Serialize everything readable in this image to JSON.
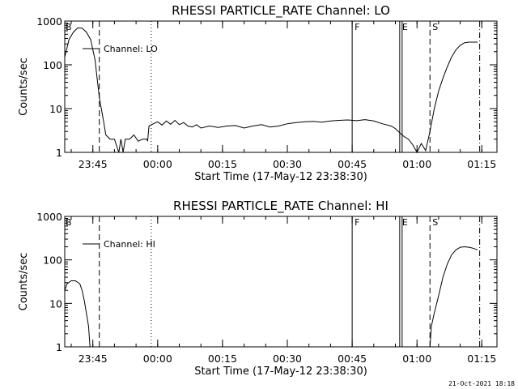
{
  "timestamp": "21-Oct-2021 18:18",
  "chart_data": [
    {
      "type": "line",
      "title": "RHESSI PARTICLE_RATE Channel: LO",
      "xlabel": "Start Time (17-May-12 23:38:30)",
      "ylabel": "Counts/sec",
      "yscale": "log",
      "ylim": [
        1,
        1000
      ],
      "xlim": [
        "23:38:30",
        "01:18:30"
      ],
      "x_ticks": [
        "23:45",
        "00:00",
        "00:15",
        "00:30",
        "00:45",
        "01:00",
        "01:15"
      ],
      "y_ticks": [
        "1",
        "10",
        "100",
        "1000"
      ],
      "legend": "top-left",
      "series": [
        {
          "name": "Channel: LO",
          "points": [
            [
              "23:38:30",
              150
            ],
            [
              "23:39:30",
              380
            ],
            [
              "23:40:30",
              560
            ],
            [
              "23:41:30",
              700
            ],
            [
              "23:42:30",
              690
            ],
            [
              "23:43:30",
              560
            ],
            [
              "23:44:30",
              380
            ],
            [
              "23:45:30",
              130
            ],
            [
              "23:46:30",
              18
            ],
            [
              "23:47:30",
              5
            ],
            [
              "23:48:00",
              2.5
            ],
            [
              "23:49:00",
              2
            ],
            [
              "23:50:00",
              2
            ],
            [
              "23:51:00",
              1
            ],
            [
              "23:51:30",
              2
            ],
            [
              "23:52:00",
              1
            ],
            [
              "23:52:30",
              2
            ],
            [
              "23:53:30",
              2
            ],
            [
              "23:54:30",
              2.5
            ],
            [
              "23:55:30",
              1.8
            ],
            [
              "23:56:30",
              2
            ],
            [
              "23:57:30",
              2
            ],
            [
              "23:57:40",
              1.8
            ],
            [
              "23:58:00",
              4
            ],
            [
              "23:59:00",
              4.5
            ],
            [
              "00:00:00",
              5
            ],
            [
              "00:01:00",
              4.2
            ],
            [
              "00:02:00",
              5.2
            ],
            [
              "00:03:00",
              4.4
            ],
            [
              "00:04:00",
              5.4
            ],
            [
              "00:05:00",
              4.3
            ],
            [
              "00:06:00",
              4.8
            ],
            [
              "00:07:00",
              4
            ],
            [
              "00:08:00",
              3.8
            ],
            [
              "00:09:00",
              4.3
            ],
            [
              "00:10:00",
              3.6
            ],
            [
              "00:12:00",
              4
            ],
            [
              "00:14:00",
              3.7
            ],
            [
              "00:16:00",
              4
            ],
            [
              "00:18:00",
              4.1
            ],
            [
              "00:20:00",
              3.6
            ],
            [
              "00:22:00",
              4
            ],
            [
              "00:24:00",
              4.3
            ],
            [
              "00:26:00",
              3.8
            ],
            [
              "00:28:00",
              4
            ],
            [
              "00:30:00",
              4.5
            ],
            [
              "00:32:00",
              4.8
            ],
            [
              "00:34:00",
              5
            ],
            [
              "00:36:00",
              5.1
            ],
            [
              "00:38:00",
              4.9
            ],
            [
              "00:40:00",
              5.2
            ],
            [
              "00:42:00",
              5.4
            ],
            [
              "00:44:00",
              5.5
            ],
            [
              "00:46:00",
              5.3
            ],
            [
              "00:48:00",
              5.6
            ],
            [
              "00:50:00",
              5.2
            ],
            [
              "00:52:00",
              4.5
            ],
            [
              "00:54:00",
              4
            ],
            [
              "00:55:00",
              3.5
            ],
            [
              "00:56:00",
              2.8
            ],
            [
              "00:57:00",
              2.3
            ],
            [
              "00:58:00",
              2
            ],
            [
              "00:59:00",
              1.5
            ],
            [
              "01:00:00",
              1
            ],
            [
              "01:01:00",
              1.6
            ],
            [
              "01:02:00",
              1.1
            ],
            [
              "01:03:00",
              3
            ],
            [
              "01:04:00",
              10
            ],
            [
              "01:05:00",
              25
            ],
            [
              "01:06:00",
              50
            ],
            [
              "01:07:00",
              90
            ],
            [
              "01:08:00",
              150
            ],
            [
              "01:09:00",
              220
            ],
            [
              "01:10:00",
              280
            ],
            [
              "01:11:00",
              320
            ],
            [
              "01:12:00",
              330
            ],
            [
              "01:14:00",
              330
            ]
          ]
        }
      ],
      "markers": [
        {
          "label": "F",
          "time": "00:45:00",
          "style": "solid"
        },
        {
          "label": "E",
          "time": "00:56:00",
          "style": "solid-double"
        },
        {
          "label": "S",
          "time": "01:03:00",
          "style": "dashed"
        },
        {
          "label": "",
          "time": "23:46:30",
          "style": "dashed"
        },
        {
          "label": "",
          "time": "23:58:30",
          "style": "dotted"
        },
        {
          "label": "",
          "time": "01:14:30",
          "style": "dash-dot"
        }
      ]
    },
    {
      "type": "line",
      "title": "RHESSI PARTICLE_RATE Channel: HI",
      "xlabel": "Start Time (17-May-12 23:38:30)",
      "ylabel": "Counts/sec",
      "yscale": "log",
      "ylim": [
        1,
        1000
      ],
      "xlim": [
        "23:38:30",
        "01:18:30"
      ],
      "x_ticks": [
        "23:45",
        "00:00",
        "00:15",
        "00:30",
        "00:45",
        "01:00",
        "01:15"
      ],
      "y_ticks": [
        "1",
        "10",
        "100",
        "1000"
      ],
      "legend": "top-left",
      "series": [
        {
          "name": "Channel: HI",
          "points": [
            [
              "23:38:30",
              20
            ],
            [
              "23:39:00",
              28
            ],
            [
              "23:40:00",
              33
            ],
            [
              "23:41:00",
              33
            ],
            [
              "23:42:00",
              28
            ],
            [
              "23:42:30",
              20
            ],
            [
              "23:43:00",
              12
            ],
            [
              "23:43:30",
              6
            ],
            [
              "23:44:00",
              3
            ],
            [
              "23:44:20",
              1
            ]
          ]
        },
        {
          "name": "Channel: HI",
          "points": [
            [
              "01:03:00",
              1
            ],
            [
              "01:03:20",
              3
            ],
            [
              "01:04:00",
              6
            ],
            [
              "01:05:00",
              15
            ],
            [
              "01:06:00",
              40
            ],
            [
              "01:07:00",
              80
            ],
            [
              "01:08:00",
              130
            ],
            [
              "01:09:00",
              170
            ],
            [
              "01:10:00",
              195
            ],
            [
              "01:11:00",
              200
            ],
            [
              "01:12:00",
              195
            ],
            [
              "01:13:00",
              185
            ],
            [
              "01:14:00",
              170
            ]
          ]
        }
      ],
      "markers": [
        {
          "label": "F",
          "time": "00:45:00",
          "style": "solid"
        },
        {
          "label": "E",
          "time": "00:56:00",
          "style": "solid-double"
        },
        {
          "label": "S",
          "time": "01:03:00",
          "style": "dashed"
        },
        {
          "label": "",
          "time": "23:46:30",
          "style": "dashed"
        },
        {
          "label": "",
          "time": "23:58:30",
          "style": "dotted"
        },
        {
          "label": "",
          "time": "01:14:30",
          "style": "dash-dot"
        }
      ]
    }
  ]
}
